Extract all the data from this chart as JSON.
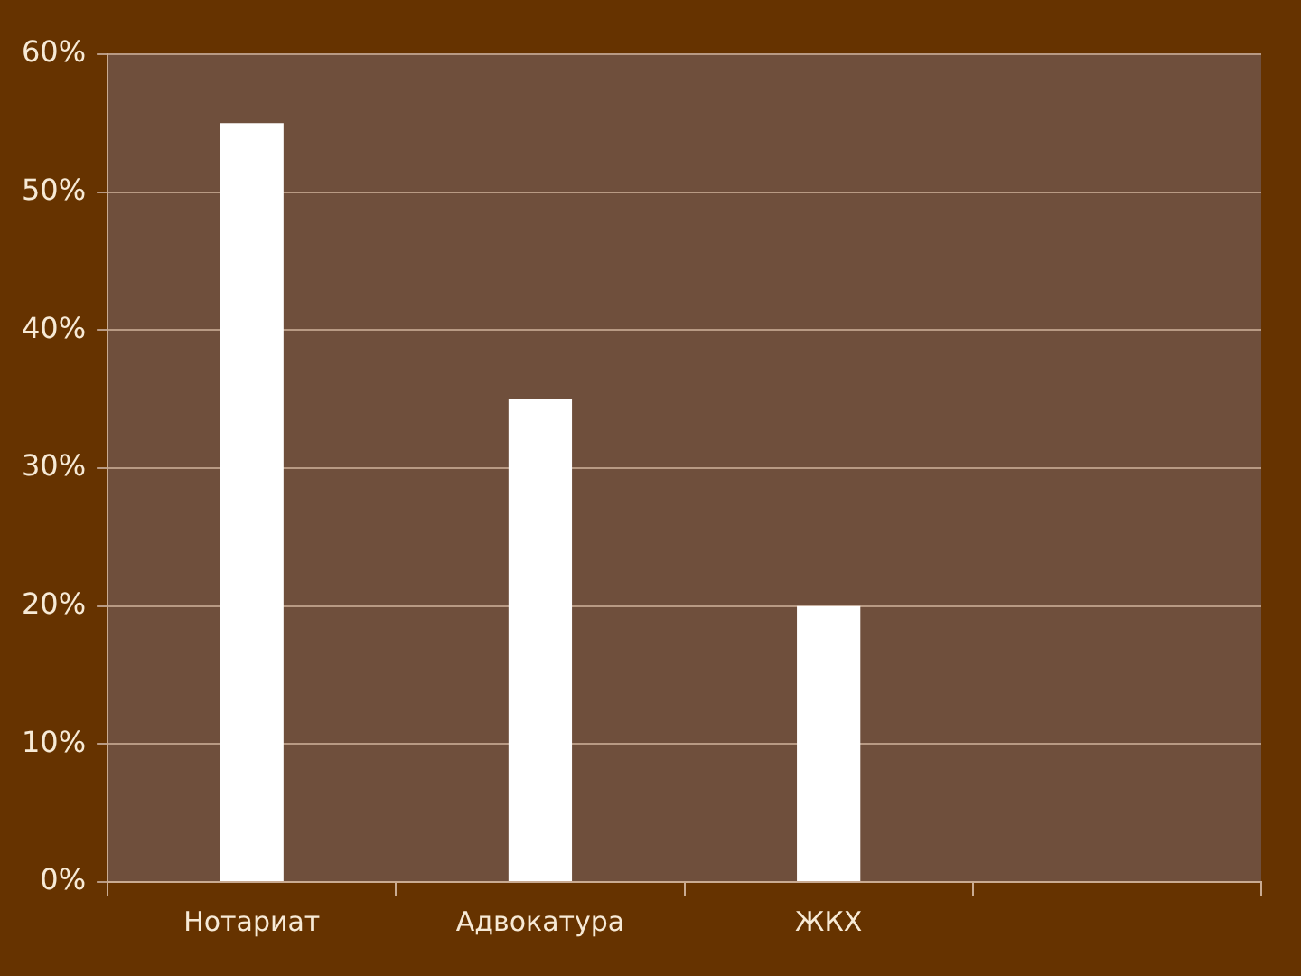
{
  "chart_data": {
    "type": "bar",
    "categories": [
      "Нотариат",
      "Адвокатура",
      "ЖКХ",
      null
    ],
    "values": [
      55,
      35,
      20,
      null
    ],
    "color": "#ffffff",
    "ylim": [
      0,
      60
    ],
    "yticks": [
      {
        "value": 0,
        "label": "0%"
      },
      {
        "value": 10,
        "label": "10%"
      },
      {
        "value": 20,
        "label": "20%"
      },
      {
        "value": 30,
        "label": "30%"
      },
      {
        "value": 40,
        "label": "40%"
      },
      {
        "value": 50,
        "label": "50%"
      },
      {
        "value": 60,
        "label": "60%"
      }
    ],
    "grid": "y"
  }
}
